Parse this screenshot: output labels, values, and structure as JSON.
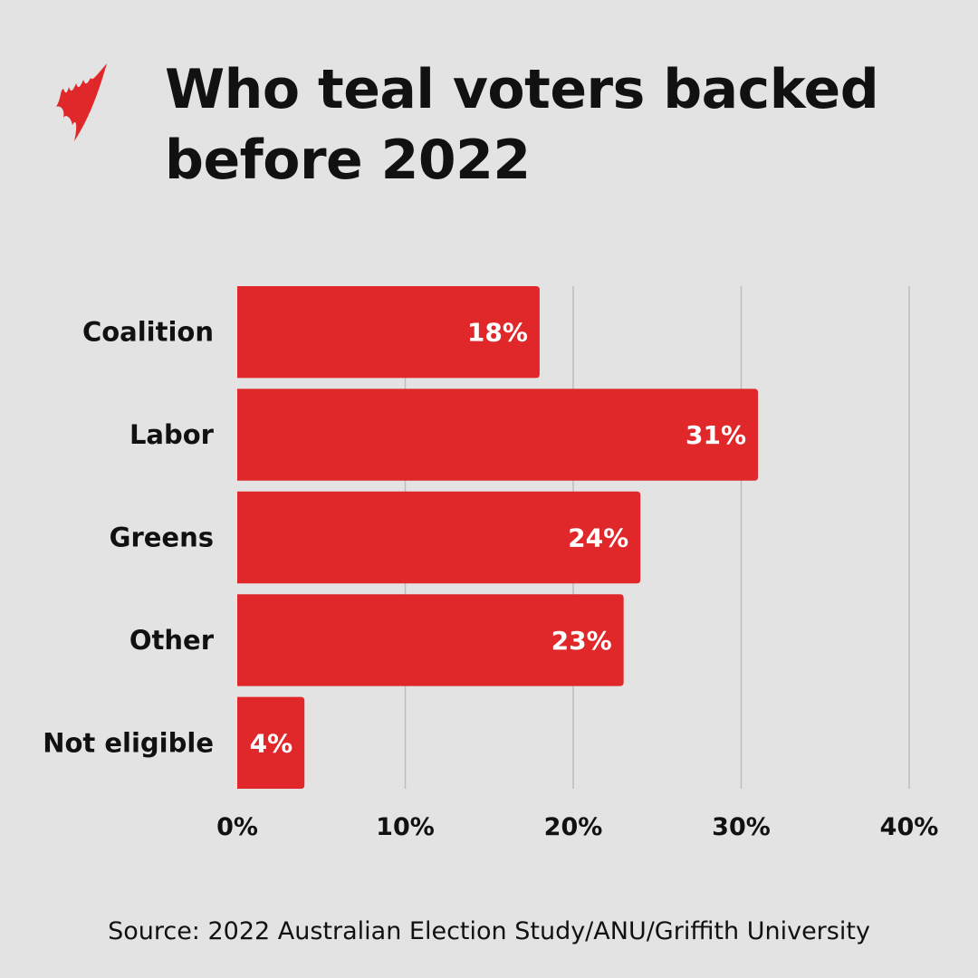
{
  "logo": {
    "name": "SBS logo",
    "color": "#e0272a"
  },
  "title": "Who teal voters backed before 2022",
  "source": "Source: 2022 Australian Election Study/ANU/Griffith University",
  "chart_data": {
    "type": "bar",
    "orientation": "horizontal",
    "title": "Who teal voters backed before 2022",
    "categories": [
      "Coalition",
      "Labor",
      "Greens",
      "Other",
      "Not eligible"
    ],
    "values": [
      18,
      31,
      24,
      23,
      4
    ],
    "data_labels": [
      "18%",
      "31%",
      "24%",
      "23%",
      "4%"
    ],
    "xlim": [
      0,
      40
    ],
    "x_ticks": [
      0,
      10,
      20,
      30,
      40
    ],
    "x_tick_labels": [
      "0%",
      "10%",
      "20%",
      "30%",
      "40%"
    ],
    "grid": "vertical",
    "bar_color": "#e0272a",
    "xlabel": "",
    "ylabel": ""
  }
}
